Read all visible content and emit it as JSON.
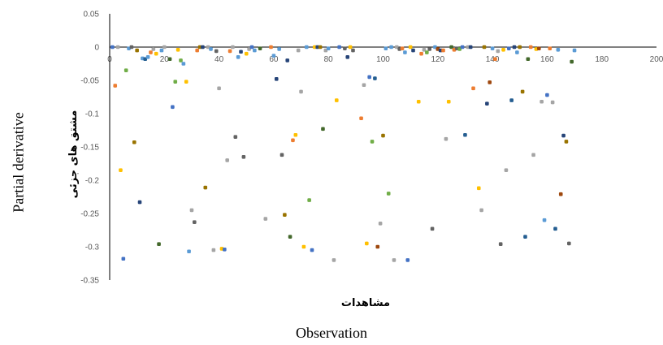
{
  "chart_data": {
    "type": "scatter",
    "title": "",
    "xlabel": "مشاهدات",
    "ylabel": "مشتق های جزئی",
    "outer_xlabel": "Observation",
    "outer_ylabel": "Partial derivative",
    "xlim": [
      0,
      200
    ],
    "ylim": [
      -0.35,
      0.05
    ],
    "x_ticks": [
      "0",
      "20",
      "40",
      "60",
      "80",
      "100",
      "120",
      "140",
      "160",
      "180",
      "200"
    ],
    "y_ticks": [
      "0.05",
      "0",
      "-0.05",
      "-0.1",
      "-0.15",
      "-0.2",
      "-0.25",
      "-0.3",
      "-0.35"
    ],
    "grid": false,
    "legend": false,
    "colors": [
      "#4472c4",
      "#ed7d31",
      "#a5a5a5",
      "#ffc000",
      "#5b9bd5",
      "#70ad47",
      "#264478",
      "#9e480e",
      "#636363",
      "#997300",
      "#255e91",
      "#43682b"
    ],
    "points": [
      [
        1,
        0,
        0
      ],
      [
        2,
        -0.058,
        1
      ],
      [
        3,
        0,
        2
      ],
      [
        4,
        -0.185,
        3
      ],
      [
        5,
        -0.318,
        0
      ],
      [
        6,
        -0.035,
        5
      ],
      [
        7,
        -0.002,
        4
      ],
      [
        8,
        0,
        8
      ],
      [
        9,
        -0.143,
        9
      ],
      [
        10,
        -0.005,
        9
      ],
      [
        11,
        -0.233,
        6
      ],
      [
        12,
        -0.017,
        4
      ],
      [
        13,
        -0.018,
        10
      ],
      [
        14,
        -0.015,
        4
      ],
      [
        15,
        -0.008,
        1
      ],
      [
        16,
        -0.003,
        2
      ],
      [
        17,
        -0.01,
        3
      ],
      [
        18,
        -0.296,
        11
      ],
      [
        19,
        -0.005,
        4
      ],
      [
        20,
        0,
        2
      ],
      [
        22,
        -0.018,
        11
      ],
      [
        23,
        -0.09,
        0
      ],
      [
        24,
        -0.052,
        5
      ],
      [
        25,
        -0.004,
        3
      ],
      [
        26,
        -0.02,
        5
      ],
      [
        27,
        -0.025,
        4
      ],
      [
        28,
        -0.052,
        3
      ],
      [
        29,
        -0.307,
        4
      ],
      [
        30,
        -0.245,
        2
      ],
      [
        31,
        -0.263,
        8
      ],
      [
        32,
        -0.005,
        1
      ],
      [
        33,
        0,
        9
      ],
      [
        34,
        0,
        6
      ],
      [
        35,
        -0.211,
        9
      ],
      [
        36,
        0,
        2
      ],
      [
        37,
        -0.003,
        4
      ],
      [
        38,
        -0.305,
        2
      ],
      [
        39,
        -0.006,
        8
      ],
      [
        40,
        -0.062,
        2
      ],
      [
        41,
        -0.303,
        3
      ],
      [
        42,
        -0.304,
        0
      ],
      [
        43,
        -0.17,
        2
      ],
      [
        44,
        -0.006,
        1
      ],
      [
        45,
        0,
        2
      ],
      [
        46,
        -0.135,
        8
      ],
      [
        47,
        -0.015,
        4
      ],
      [
        48,
        -0.007,
        6
      ],
      [
        49,
        -0.165,
        8
      ],
      [
        50,
        -0.01,
        3
      ],
      [
        51,
        -0.003,
        2
      ],
      [
        52,
        0,
        0
      ],
      [
        53,
        -0.005,
        4
      ],
      [
        55,
        -0.002,
        11
      ],
      [
        57,
        -0.258,
        2
      ],
      [
        59,
        0,
        1
      ],
      [
        60,
        -0.013,
        4
      ],
      [
        61,
        -0.048,
        6
      ],
      [
        62,
        -0.003,
        4
      ],
      [
        63,
        -0.162,
        8
      ],
      [
        64,
        -0.252,
        9
      ],
      [
        65,
        -0.02,
        6
      ],
      [
        66,
        -0.285,
        11
      ],
      [
        67,
        -0.14,
        1
      ],
      [
        68,
        -0.132,
        3
      ],
      [
        69,
        -0.005,
        2
      ],
      [
        70,
        -0.067,
        2
      ],
      [
        71,
        -0.3,
        3
      ],
      [
        72,
        0,
        4
      ],
      [
        73,
        -0.23,
        5
      ],
      [
        74,
        -0.305,
        0
      ],
      [
        75,
        0,
        3
      ],
      [
        76,
        0,
        6
      ],
      [
        77,
        0,
        9
      ],
      [
        78,
        -0.123,
        11
      ],
      [
        79,
        -0.005,
        2
      ],
      [
        80,
        -0.002,
        4
      ],
      [
        82,
        -0.32,
        2
      ],
      [
        83,
        -0.08,
        3
      ],
      [
        84,
        0,
        0
      ],
      [
        86,
        -0.002,
        8
      ],
      [
        87,
        -0.015,
        6
      ],
      [
        88,
        0,
        3
      ],
      [
        89,
        -0.005,
        8
      ],
      [
        92,
        -0.107,
        1
      ],
      [
        93,
        -0.057,
        2
      ],
      [
        94,
        -0.295,
        3
      ],
      [
        95,
        -0.045,
        0
      ],
      [
        96,
        -0.142,
        5
      ],
      [
        97,
        -0.047,
        10
      ],
      [
        98,
        -0.3,
        7
      ],
      [
        99,
        -0.265,
        2
      ],
      [
        100,
        -0.133,
        9
      ],
      [
        101,
        -0.002,
        4
      ],
      [
        102,
        -0.22,
        5
      ],
      [
        103,
        0,
        4
      ],
      [
        104,
        -0.32,
        2
      ],
      [
        105,
        0,
        2
      ],
      [
        106,
        -0.003,
        8
      ],
      [
        107,
        -0.002,
        1
      ],
      [
        108,
        -0.008,
        4
      ],
      [
        109,
        -0.32,
        0
      ],
      [
        110,
        0,
        3
      ],
      [
        111,
        -0.005,
        6
      ],
      [
        113,
        -0.082,
        3
      ],
      [
        114,
        -0.01,
        1
      ],
      [
        115,
        -0.004,
        2
      ],
      [
        116,
        -0.008,
        5
      ],
      [
        117,
        -0.003,
        8
      ],
      [
        118,
        -0.273,
        8
      ],
      [
        119,
        0,
        4
      ],
      [
        120,
        -0.003,
        7
      ],
      [
        121,
        -0.005,
        6
      ],
      [
        122,
        -0.005,
        1
      ],
      [
        123,
        -0.138,
        2
      ],
      [
        124,
        -0.082,
        3
      ],
      [
        125,
        0,
        11
      ],
      [
        126,
        -0.004,
        1
      ],
      [
        127,
        -0.002,
        8
      ],
      [
        128,
        -0.003,
        5
      ],
      [
        129,
        0,
        0
      ],
      [
        130,
        -0.132,
        10
      ],
      [
        131,
        0,
        2
      ],
      [
        132,
        0,
        6
      ],
      [
        133,
        -0.062,
        1
      ],
      [
        135,
        -0.212,
        3
      ],
      [
        136,
        -0.245,
        2
      ],
      [
        137,
        0,
        9
      ],
      [
        138,
        -0.085,
        6
      ],
      [
        139,
        -0.053,
        7
      ],
      [
        140,
        -0.002,
        4
      ],
      [
        141,
        -0.018,
        1
      ],
      [
        142,
        -0.006,
        2
      ],
      [
        143,
        -0.296,
        8
      ],
      [
        144,
        -0.004,
        3
      ],
      [
        145,
        -0.185,
        2
      ],
      [
        146,
        -0.002,
        0
      ],
      [
        147,
        -0.08,
        10
      ],
      [
        148,
        0,
        6
      ],
      [
        149,
        -0.008,
        4
      ],
      [
        150,
        0,
        9
      ],
      [
        151,
        -0.067,
        9
      ],
      [
        152,
        -0.285,
        10
      ],
      [
        153,
        -0.018,
        11
      ],
      [
        154,
        0,
        1
      ],
      [
        155,
        -0.162,
        2
      ],
      [
        156,
        -0.003,
        3
      ],
      [
        157,
        -0.002,
        7
      ],
      [
        158,
        -0.082,
        2
      ],
      [
        159,
        -0.26,
        4
      ],
      [
        160,
        -0.072,
        0
      ],
      [
        161,
        -0.002,
        1
      ],
      [
        162,
        -0.083,
        2
      ],
      [
        163,
        -0.273,
        10
      ],
      [
        164,
        -0.004,
        4
      ],
      [
        165,
        -0.221,
        7
      ],
      [
        166,
        -0.133,
        6
      ],
      [
        167,
        -0.142,
        9
      ],
      [
        168,
        -0.295,
        8
      ],
      [
        169,
        -0.022,
        11
      ],
      [
        170,
        -0.005,
        4
      ]
    ]
  }
}
